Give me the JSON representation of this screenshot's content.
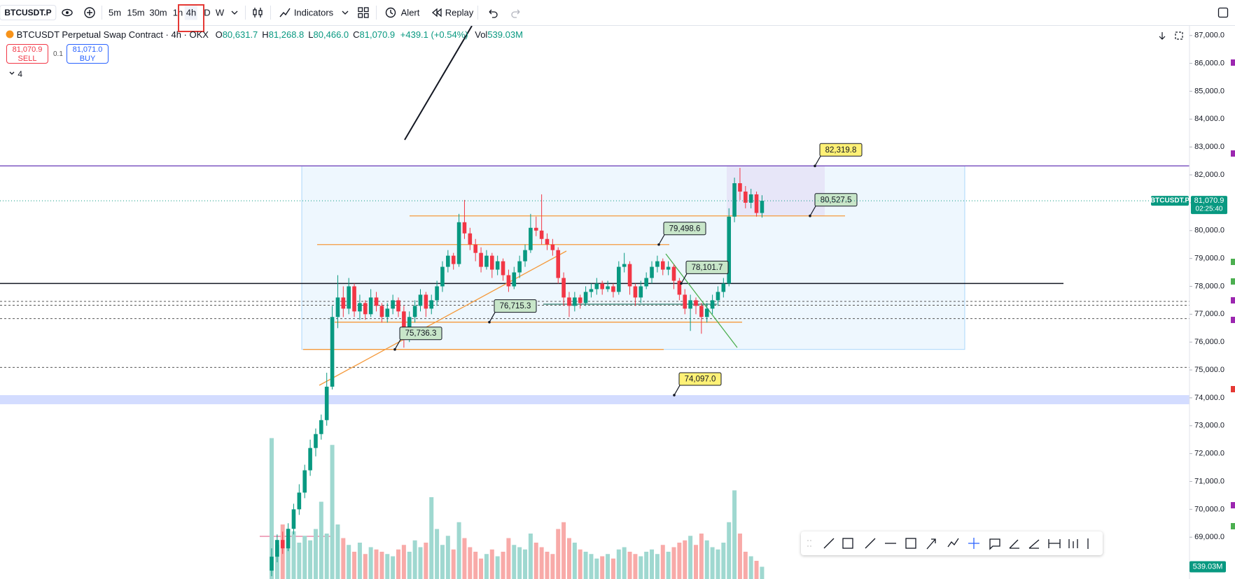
{
  "toolbar": {
    "symbol": "BTCUSDT.P",
    "intervals": [
      "5m",
      "15m",
      "30m",
      "1h",
      "4h",
      "D",
      "W"
    ],
    "active_interval": "4h",
    "indicators": "Indicators",
    "alert": "Alert",
    "replay": "Replay"
  },
  "legend": {
    "title": "BTCUSDT Perpetual Swap Contract · 4h · OKX",
    "ohlc": [
      {
        "key": "O",
        "value": "80,631.7"
      },
      {
        "key": "H",
        "value": "81,268.8"
      },
      {
        "key": "L",
        "value": "80,466.0"
      },
      {
        "key": "C",
        "value": "81,070.9"
      }
    ],
    "change": "+439.1 (+0.54%)",
    "volume_key": "Vol",
    "volume": "539.03M"
  },
  "trade": {
    "sell_price": "81,070.9",
    "sell": "SELL",
    "quantity": "0.1",
    "buy_price": "81,071.0",
    "buy": "BUY"
  },
  "indicator_count": "4",
  "last_price": {
    "symbol": "BTCUSDT.P",
    "price": "81,070.9",
    "countdown": "02:25:40"
  },
  "volume_tag": "539.03M",
  "chart_data": {
    "type": "candlestick",
    "up_color": "#089981",
    "down_color": "#f23645",
    "volume_up_color": "#9fd8d0",
    "volume_down_color": "#f8aaa8",
    "ylim": [
      67500,
      87370
    ],
    "yticks": [
      {
        "value": 69000,
        "label": "69,000.0"
      },
      {
        "value": 70000,
        "label": "70,000.0"
      },
      {
        "value": 71000,
        "label": "71,000.0"
      },
      {
        "value": 72000,
        "label": "72,000.0"
      },
      {
        "value": 73000,
        "label": "73,000.0"
      },
      {
        "value": 74000,
        "label": "74,000.0"
      },
      {
        "value": 75000,
        "label": "75,000.0"
      },
      {
        "value": 76000,
        "label": "76,000.0"
      },
      {
        "value": 77000,
        "label": "77,000.0"
      },
      {
        "value": 78000,
        "label": "78,000.0"
      },
      {
        "value": 79000,
        "label": "79,000.0"
      },
      {
        "value": 80000,
        "label": "80,000.0"
      },
      {
        "value": 81000,
        "label": "81,000.0"
      },
      {
        "value": 82000,
        "label": "82,000.0"
      },
      {
        "value": 83000,
        "label": "83,000.0"
      },
      {
        "value": 84000,
        "label": "84,000.0"
      },
      {
        "value": 85000,
        "label": "85,000.0"
      },
      {
        "value": 86000,
        "label": "86,000.0"
      },
      {
        "value": 87000,
        "label": "87,000.0"
      }
    ],
    "grid": false,
    "volume_lim": [
      0,
      8000
    ],
    "ohlc": [
      [
        67800,
        68600,
        67600,
        68300
      ],
      [
        68300,
        69100,
        68100,
        68900
      ],
      [
        68900,
        69200,
        68400,
        68600
      ],
      [
        68600,
        69500,
        68500,
        69300
      ],
      [
        69300,
        70200,
        69100,
        70000
      ],
      [
        70000,
        70900,
        69800,
        70600
      ],
      [
        70600,
        71600,
        70400,
        71400
      ],
      [
        71400,
        72500,
        71200,
        72200
      ],
      [
        72200,
        72900,
        71900,
        72700
      ],
      [
        72700,
        73400,
        72500,
        73200
      ],
      [
        73200,
        74900,
        73000,
        74400
      ],
      [
        74400,
        77300,
        74300,
        76900
      ],
      [
        76900,
        78400,
        76500,
        77600
      ],
      [
        77600,
        78000,
        76900,
        77200
      ],
      [
        77200,
        78300,
        77000,
        78000
      ],
      [
        78000,
        78100,
        76900,
        77100
      ],
      [
        77100,
        77700,
        76800,
        77400
      ],
      [
        77400,
        77500,
        76800,
        77000
      ],
      [
        77000,
        77900,
        76900,
        77600
      ],
      [
        77600,
        77800,
        77100,
        77300
      ],
      [
        77300,
        77400,
        76700,
        76900
      ],
      [
        76900,
        77400,
        76700,
        77200
      ],
      [
        77200,
        77700,
        77000,
        77500
      ],
      [
        77500,
        77600,
        76900,
        77100
      ],
      [
        77100,
        77300,
        75800,
        76200
      ],
      [
        76200,
        77100,
        76000,
        76900
      ],
      [
        76900,
        77500,
        76700,
        77300
      ],
      [
        77300,
        77900,
        77100,
        77700
      ],
      [
        77700,
        77800,
        76900,
        77200
      ],
      [
        77200,
        77700,
        77000,
        77500
      ],
      [
        77500,
        78200,
        77300,
        78000
      ],
      [
        78000,
        78900,
        77800,
        78700
      ],
      [
        78700,
        79300,
        78500,
        79100
      ],
      [
        79100,
        79200,
        78600,
        78800
      ],
      [
        78800,
        80600,
        78700,
        80300
      ],
      [
        80300,
        81100,
        79700,
        79900
      ],
      [
        79900,
        80100,
        79300,
        79500
      ],
      [
        79500,
        79700,
        78900,
        79200
      ],
      [
        79200,
        79400,
        78500,
        78700
      ],
      [
        78700,
        79300,
        78600,
        79100
      ],
      [
        79100,
        79200,
        78300,
        78600
      ],
      [
        78600,
        79100,
        78400,
        78900
      ],
      [
        78900,
        79000,
        78200,
        78400
      ],
      [
        78400,
        78600,
        77800,
        78000
      ],
      [
        78000,
        78700,
        77900,
        78500
      ],
      [
        78500,
        79100,
        78300,
        78900
      ],
      [
        78900,
        79500,
        78700,
        79300
      ],
      [
        79300,
        80600,
        79200,
        80100
      ],
      [
        80100,
        80500,
        79800,
        80000
      ],
      [
        80000,
        81300,
        79500,
        79700
      ],
      [
        79700,
        79900,
        79300,
        79500
      ],
      [
        79500,
        79700,
        79100,
        79300
      ],
      [
        79300,
        79400,
        78100,
        78300
      ],
      [
        78300,
        78500,
        77300,
        77600
      ],
      [
        77600,
        77800,
        76900,
        77300
      ],
      [
        77300,
        77800,
        77100,
        77600
      ],
      [
        77600,
        77700,
        77200,
        77400
      ],
      [
        77400,
        78000,
        77300,
        77800
      ],
      [
        77800,
        78100,
        77600,
        77900
      ],
      [
        77900,
        78300,
        77700,
        78100
      ],
      [
        78100,
        78200,
        77700,
        77900
      ],
      [
        77900,
        78200,
        77800,
        78000
      ],
      [
        78000,
        78100,
        77600,
        77800
      ],
      [
        77800,
        78900,
        77700,
        78700
      ],
      [
        78700,
        79200,
        78500,
        78800
      ],
      [
        78800,
        78900,
        77700,
        78000
      ],
      [
        78000,
        78100,
        77300,
        77600
      ],
      [
        77600,
        78200,
        77400,
        78000
      ],
      [
        78000,
        78500,
        77900,
        78300
      ],
      [
        78300,
        78900,
        78100,
        78700
      ],
      [
        78700,
        79100,
        78500,
        78900
      ],
      [
        78900,
        79000,
        78400,
        78600
      ],
      [
        78600,
        78900,
        78400,
        78700
      ],
      [
        78700,
        78800,
        77900,
        78200
      ],
      [
        78200,
        78300,
        77500,
        77700
      ],
      [
        77700,
        77900,
        77000,
        77200
      ],
      [
        77200,
        77700,
        76400,
        77500
      ],
      [
        77500,
        77600,
        77000,
        77300
      ],
      [
        77300,
        77400,
        76300,
        76900
      ],
      [
        76900,
        77400,
        76700,
        77200
      ],
      [
        77200,
        77700,
        77000,
        77500
      ],
      [
        77500,
        78000,
        77300,
        77800
      ],
      [
        77800,
        78300,
        77600,
        78100
      ],
      [
        78100,
        80800,
        78000,
        80500
      ],
      [
        80500,
        81900,
        80300,
        81700
      ],
      [
        81700,
        82250,
        81100,
        81400
      ],
      [
        81400,
        81600,
        80800,
        81000
      ],
      [
        81000,
        81500,
        80800,
        81300
      ],
      [
        81300,
        81400,
        80500,
        80631.7
      ],
      [
        80631.7,
        81268.8,
        80466.0,
        81070.9
      ]
    ],
    "volumes": [
      6200,
      1500,
      2400,
      1800,
      2100,
      1600,
      1900,
      1700,
      2200,
      3400,
      2000,
      5900,
      2400,
      1800,
      1500,
      1200,
      1600,
      1100,
      1400,
      1300,
      1200,
      1100,
      1000,
      1300,
      1500,
      1200,
      1700,
      1400,
      1600,
      3600,
      2200,
      1500,
      1900,
      1300,
      2500,
      1800,
      1400,
      1200,
      900,
      1100,
      1300,
      1000,
      1200,
      1800,
      1500,
      1400,
      1300,
      2000,
      1600,
      1400,
      1200,
      1100,
      2200,
      2500,
      1800,
      1600,
      1300,
      1200,
      1100,
      900,
      1000,
      1100,
      900,
      1300,
      1400,
      1200,
      1100,
      1000,
      1200,
      1300,
      1100,
      1500,
      1200,
      1400,
      1600,
      1700,
      1900,
      1500,
      2000,
      1700,
      1400,
      1300,
      1600,
      2500,
      3900,
      2000,
      1200,
      1000,
      800,
      539.03
    ],
    "annotations": [
      {
        "value": 82319.8,
        "label": "82,319.8",
        "color": "#fff176"
      },
      {
        "value": 80527.5,
        "label": "80,527.5",
        "color": "#c8e6c9"
      },
      {
        "value": 79498.6,
        "label": "79,498.6",
        "color": "#c8e6c9"
      },
      {
        "value": 78101.7,
        "label": "78,101.7",
        "color": "#c8e6c9"
      },
      {
        "value": 76715.3,
        "label": "76,715.3",
        "color": "#c8e6c9"
      },
      {
        "value": 75736.3,
        "label": "75,736.3",
        "color": "#c8e6c9"
      },
      {
        "value": 74097.0,
        "label": "74,097.0",
        "color": "#fff176"
      }
    ]
  }
}
